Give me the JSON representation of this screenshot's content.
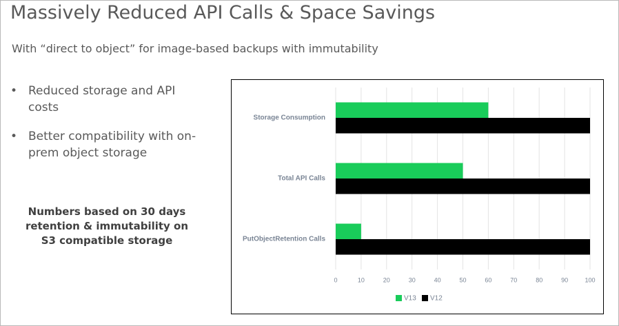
{
  "header": {
    "title": "Massively Reduced API Calls & Space Savings",
    "subtitle": "With “direct to object” for image-based backups with immutability"
  },
  "bullets": [
    "Reduced storage and API costs",
    "Better compatibility with on-prem object storage"
  ],
  "note": "Numbers based on 30 days retention &  immutability on S3 compatible storage",
  "chart_data": {
    "type": "hbar",
    "categories": [
      "Storage Consumption",
      "Total API Calls",
      "PutObjectRetention Calls"
    ],
    "series": [
      {
        "name": "V13",
        "color": "#19cc5a",
        "values": [
          60,
          50,
          10
        ]
      },
      {
        "name": "V12",
        "color": "#000000",
        "values": [
          100,
          100,
          100
        ]
      }
    ],
    "xlim": [
      0,
      100
    ],
    "xticks": [
      0,
      10,
      20,
      30,
      40,
      50,
      60,
      70,
      80,
      90,
      100
    ],
    "grid": true,
    "legend": "bottom"
  }
}
